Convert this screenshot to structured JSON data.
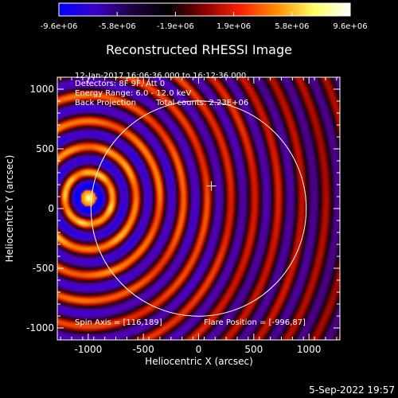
{
  "colorbar": {
    "tick_labels": [
      "-9.6e+06",
      "-5.8e+06",
      "-1.9e+06",
      "1.9e+06",
      "5.8e+06",
      "9.6e+06"
    ],
    "stops": [
      "#0000ff",
      "#3a00c8",
      "#200040",
      "#000000",
      "#8a0000",
      "#ff2000",
      "#ff9000",
      "#ffff60",
      "#ffffff"
    ]
  },
  "timestamp": "5-Sep-2022 19:57",
  "chart_data": {
    "type": "heatmap",
    "title": "Reconstructed RHESSI Image",
    "xlabel": "Heliocentric X (arcsec)",
    "ylabel": "Heliocentric Y (arcsec)",
    "xlim": [
      -1280,
      1280
    ],
    "ylim": [
      -1100,
      1100
    ],
    "x_ticks": [
      -1000,
      -500,
      0,
      500,
      1000
    ],
    "x_tick_labels": [
      "-1000",
      "-500",
      "0",
      "500",
      "1000"
    ],
    "y_ticks": [
      -1000,
      -500,
      0,
      500,
      1000
    ],
    "y_tick_labels": [
      "-1000",
      "-500",
      "0",
      "500",
      "1000"
    ],
    "annotations": [
      "12-Jan-2017 16:06:36.000 to 16:12:36.000",
      "Detectors: 8F 9F, Att 0",
      "Energy Range: 6.0 - 12.0 keV",
      "Back Projection",
      "Total counts: 2.23E+06"
    ],
    "spin_axis": "Spin Axis = [116,189]",
    "flare_position_label": "Flare Position = [-996,87]",
    "flare_position": [
      -996,
      87
    ],
    "sun_center_cross": [
      116,
      189
    ],
    "solar_limb": {
      "center": [
        0,
        0
      ],
      "radius": 975
    },
    "colorbar_range": [
      -9600000,
      9600000
    ]
  }
}
